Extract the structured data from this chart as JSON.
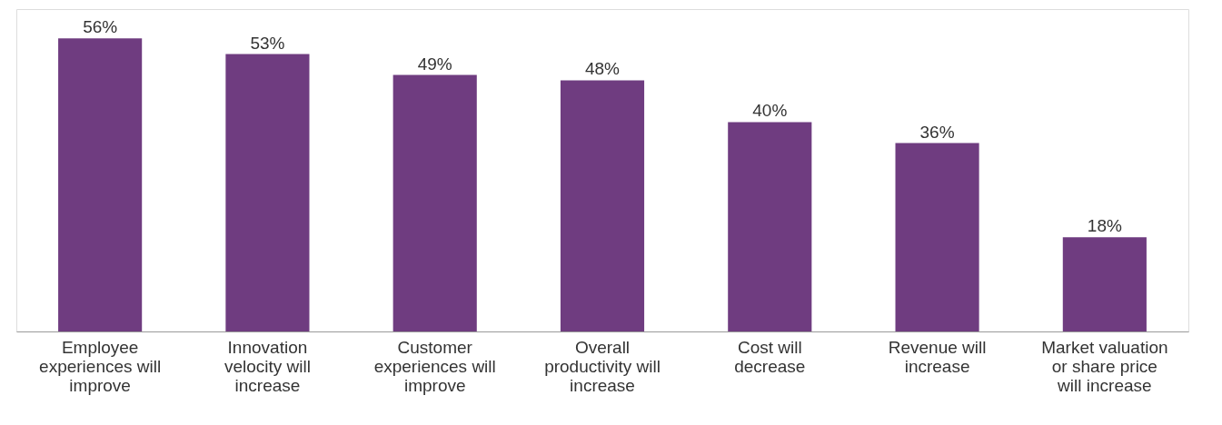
{
  "chart_data": {
    "type": "bar",
    "categories": [
      "Employee experiences will improve",
      "Innovation velocity will increase",
      "Customer experiences will improve",
      "Overall productivity will increase",
      "Cost will decrease",
      "Revenue will increase",
      "Market valuation or share price will increase"
    ],
    "values": [
      56,
      53,
      49,
      48,
      40,
      36,
      18
    ],
    "value_labels": [
      "56%",
      "53%",
      "49%",
      "48%",
      "40%",
      "36%",
      "18%"
    ],
    "color": "#6f3c80",
    "grid": false
  }
}
